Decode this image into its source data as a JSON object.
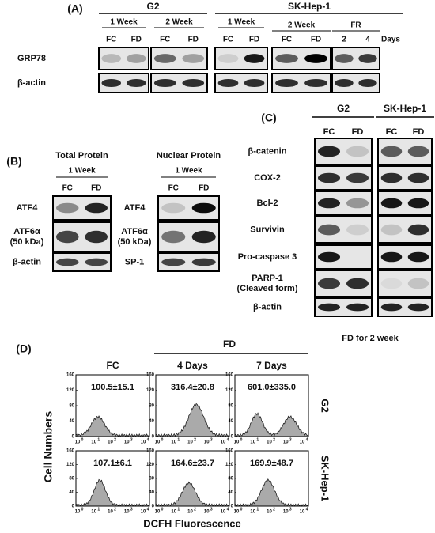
{
  "panel_a": {
    "label": "(A)",
    "groups": [
      {
        "name": "G2",
        "periods": [
          {
            "name": "1 Week",
            "lanes": [
              "FC",
              "FD"
            ]
          },
          {
            "name": "2 Week",
            "lanes": [
              "FC",
              "FD"
            ]
          }
        ]
      },
      {
        "name": "SK-Hep-1",
        "periods": [
          {
            "name": "1 Week",
            "lanes": [
              "FC",
              "FD"
            ]
          },
          {
            "name": "2 Week",
            "lanes": [
              "FC",
              "FD"
            ]
          },
          {
            "name": "FR",
            "lanes": [
              "2",
              "4"
            ]
          }
        ]
      }
    ],
    "lane_unit": "Days",
    "rows": [
      "GRP78",
      "β-actin"
    ]
  },
  "panel_b": {
    "label": "(B)",
    "blocks": [
      {
        "title": "Total Protein",
        "period": "1 Week",
        "lanes": [
          "FC",
          "FD"
        ],
        "rows": [
          [
            "ATF4"
          ],
          [
            "ATF6α",
            "(50 kDa)"
          ],
          [
            "β-actin"
          ]
        ]
      },
      {
        "title": "Nuclear Protein",
        "period": "1 Week",
        "lanes": [
          "FC",
          "FD"
        ],
        "rows": [
          [
            "ATF4"
          ],
          [
            "ATF6α",
            "(50 kDa)"
          ],
          [
            "SP-1"
          ]
        ]
      }
    ]
  },
  "panel_c": {
    "label": "(C)",
    "groups": [
      {
        "name": "G2",
        "lanes": [
          "FC",
          "FD"
        ]
      },
      {
        "name": "SK-Hep-1",
        "lanes": [
          "FC",
          "FD"
        ]
      }
    ],
    "rows": [
      [
        "β-catenin"
      ],
      [
        "COX-2"
      ],
      [
        "Bcl-2"
      ],
      [
        "Survivin"
      ],
      [
        "Pro-caspase 3"
      ],
      [
        "PARP-1",
        "(Cleaved form)"
      ],
      [
        "β-actin"
      ]
    ],
    "note": "FD for 2 week"
  },
  "panel_d": {
    "label": "(D)",
    "treatment": "FD",
    "columns": [
      "FC",
      "4 Days",
      "7 Days"
    ],
    "rows": [
      {
        "name": "G2",
        "values": [
          "100.5±15.1",
          "316.4±20.8",
          "601.0±335.0"
        ]
      },
      {
        "name": "SK-Hep-1",
        "values": [
          "107.1±6.1",
          "164.6±23.7",
          "169.9±48.7"
        ]
      }
    ],
    "y_label": "Cell Numbers",
    "x_label": "DCFH Fluorescence",
    "yticks": [
      "0",
      "40",
      "80",
      "120",
      "160"
    ],
    "xtick_base": "10",
    "xtick_exponents": [
      "0",
      "1",
      "2",
      "3",
      "4"
    ]
  }
}
